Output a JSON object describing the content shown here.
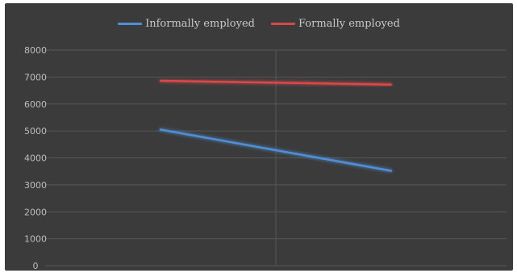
{
  "chart_data": {
    "type": "line",
    "title": "",
    "xlabel": "",
    "ylabel": "",
    "categories": [
      "",
      ""
    ],
    "ylim": [
      0,
      8000
    ],
    "yticks": [
      0,
      1000,
      2000,
      3000,
      4000,
      5000,
      6000,
      7000,
      8000
    ],
    "grid": true,
    "legend_position": "top-center",
    "series": [
      {
        "name": "Informally employed",
        "values": [
          5050,
          3520
        ],
        "color": "#4f8fd6"
      },
      {
        "name": "Formally employed",
        "values": [
          6860,
          6720
        ],
        "color": "#d94848"
      }
    ]
  },
  "colors": {
    "background": "#3b3b3b",
    "gridline": "#575757",
    "text": "#bdbdbd"
  }
}
